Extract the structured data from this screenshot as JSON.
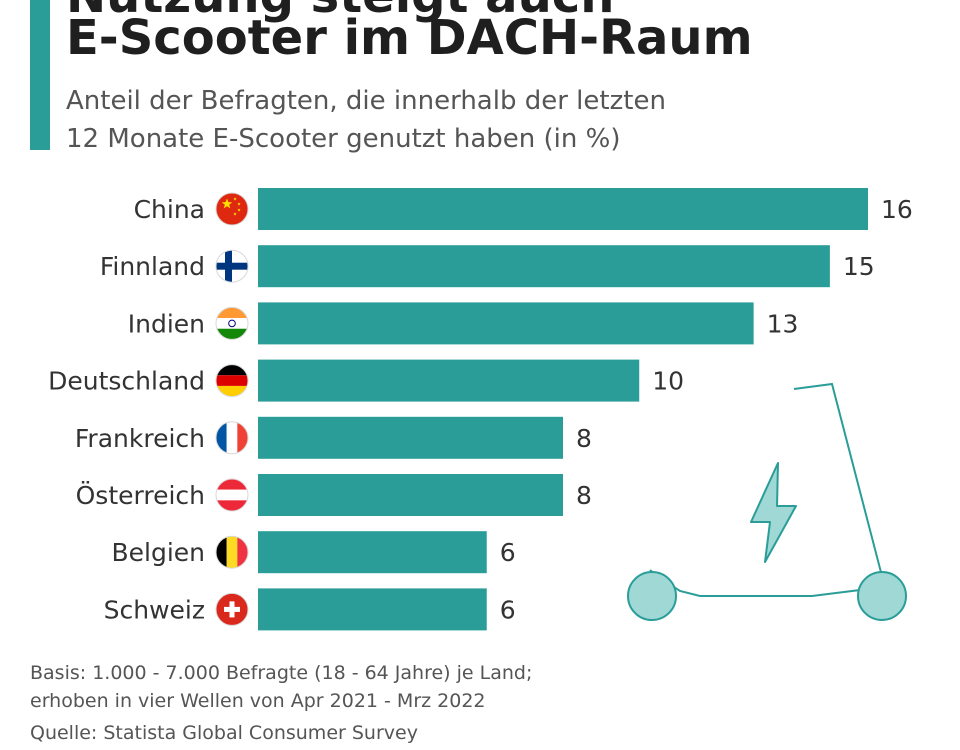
{
  "title": {
    "line1": "Nutzung steigt auch",
    "line2": "E-Scooter im DACH-Raum"
  },
  "subtitle": {
    "line1": "Anteil der Befragten, die innerhalb der letzten",
    "line2": "12 Monate E-Scooter genutzt haben (in %)"
  },
  "chart_data": {
    "type": "bar",
    "orientation": "horizontal",
    "unit": "%",
    "categories": [
      "China",
      "Finnland",
      "Indien",
      "Deutschland",
      "Frankreich",
      "Österreich",
      "Belgien",
      "Schweiz"
    ],
    "values": [
      16,
      15,
      13,
      10,
      8,
      8,
      6,
      6
    ],
    "flags": [
      "china-flag-icon",
      "finland-flag-icon",
      "india-flag-icon",
      "germany-flag-icon",
      "france-flag-icon",
      "austria-flag-icon",
      "belgium-flag-icon",
      "switzerland-flag-icon"
    ],
    "xlim": [
      0,
      16
    ],
    "grid": false,
    "legend": "none",
    "bar_color": "#2a9d99"
  },
  "illustration": {
    "icon": "e-scooter-with-lightning-icon"
  },
  "footer": {
    "basis_line1": "Basis: 1.000 - 7.000 Befragte (18 - 64 Jahre) je Land;",
    "basis_line2": "erhoben in vier Wellen von Apr 2021 - Mrz 2022",
    "source": "Quelle: Statista Global Consumer Survey"
  },
  "colors": {
    "accent": "#2a9d99",
    "illustration": "#2a9d99",
    "illustration_fill": "#9fd8d5"
  }
}
